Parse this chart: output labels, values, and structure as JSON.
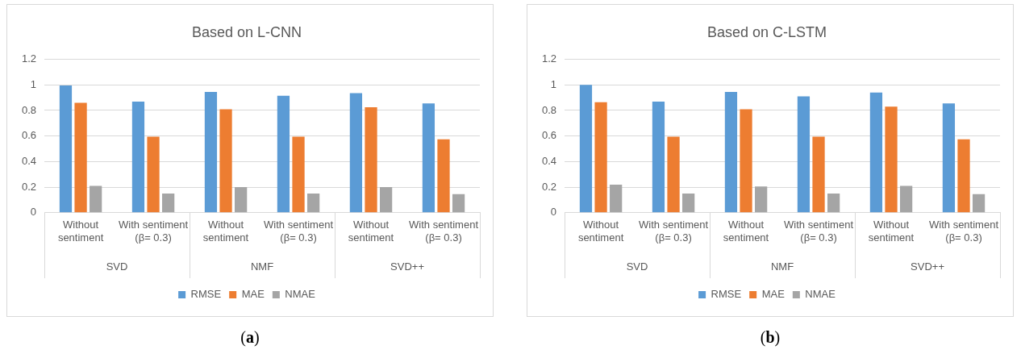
{
  "chart_data": [
    {
      "type": "bar",
      "title": "Based on L-CNN",
      "categories": [
        "Without sentiment",
        "With sentiment (β= 0.3)",
        "Without sentiment",
        "With sentiment (β= 0.3)",
        "Without sentiment",
        "With sentiment (β= 0.3)"
      ],
      "series": [
        {
          "name": "RMSE",
          "color": "#5b9bd5",
          "values": [
            0.995,
            0.87,
            0.945,
            0.915,
            0.935,
            0.855
          ]
        },
        {
          "name": "MAE",
          "color": "#ed7d31",
          "values": [
            0.86,
            0.595,
            0.81,
            0.595,
            0.825,
            0.575
          ]
        },
        {
          "name": "NMAE",
          "color": "#a5a5a5",
          "values": [
            0.21,
            0.15,
            0.2,
            0.15,
            0.2,
            0.145
          ]
        }
      ],
      "ylim": [
        0,
        1.2
      ],
      "yticks": [
        0,
        0.2,
        0.4,
        0.6,
        0.8,
        1,
        1.2
      ],
      "grid": "y",
      "legend": "bottom",
      "annotations": [
        "SVD",
        "NMF",
        "SVD++",
        "(a)"
      ]
    },
    {
      "type": "bar",
      "title": "Based on C-LSTM",
      "categories": [
        "Without sentiment",
        "With sentiment (β= 0.3)",
        "Without sentiment",
        "With sentiment (β= 0.3)",
        "Without sentiment",
        "With sentiment (β= 0.3)"
      ],
      "series": [
        {
          "name": "RMSE",
          "color": "#5b9bd5",
          "values": [
            1.0,
            0.87,
            0.945,
            0.91,
            0.94,
            0.855
          ]
        },
        {
          "name": "MAE",
          "color": "#ed7d31",
          "values": [
            0.865,
            0.595,
            0.81,
            0.595,
            0.83,
            0.575
          ]
        },
        {
          "name": "NMAE",
          "color": "#a5a5a5",
          "values": [
            0.22,
            0.15,
            0.205,
            0.15,
            0.21,
            0.145
          ]
        }
      ],
      "ylim": [
        0,
        1.2
      ],
      "yticks": [
        0,
        0.2,
        0.4,
        0.6,
        0.8,
        1,
        1.2
      ],
      "grid": "y",
      "legend": "bottom",
      "annotations": [
        "SVD",
        "NMF",
        "SVD++",
        "(b)"
      ]
    }
  ]
}
